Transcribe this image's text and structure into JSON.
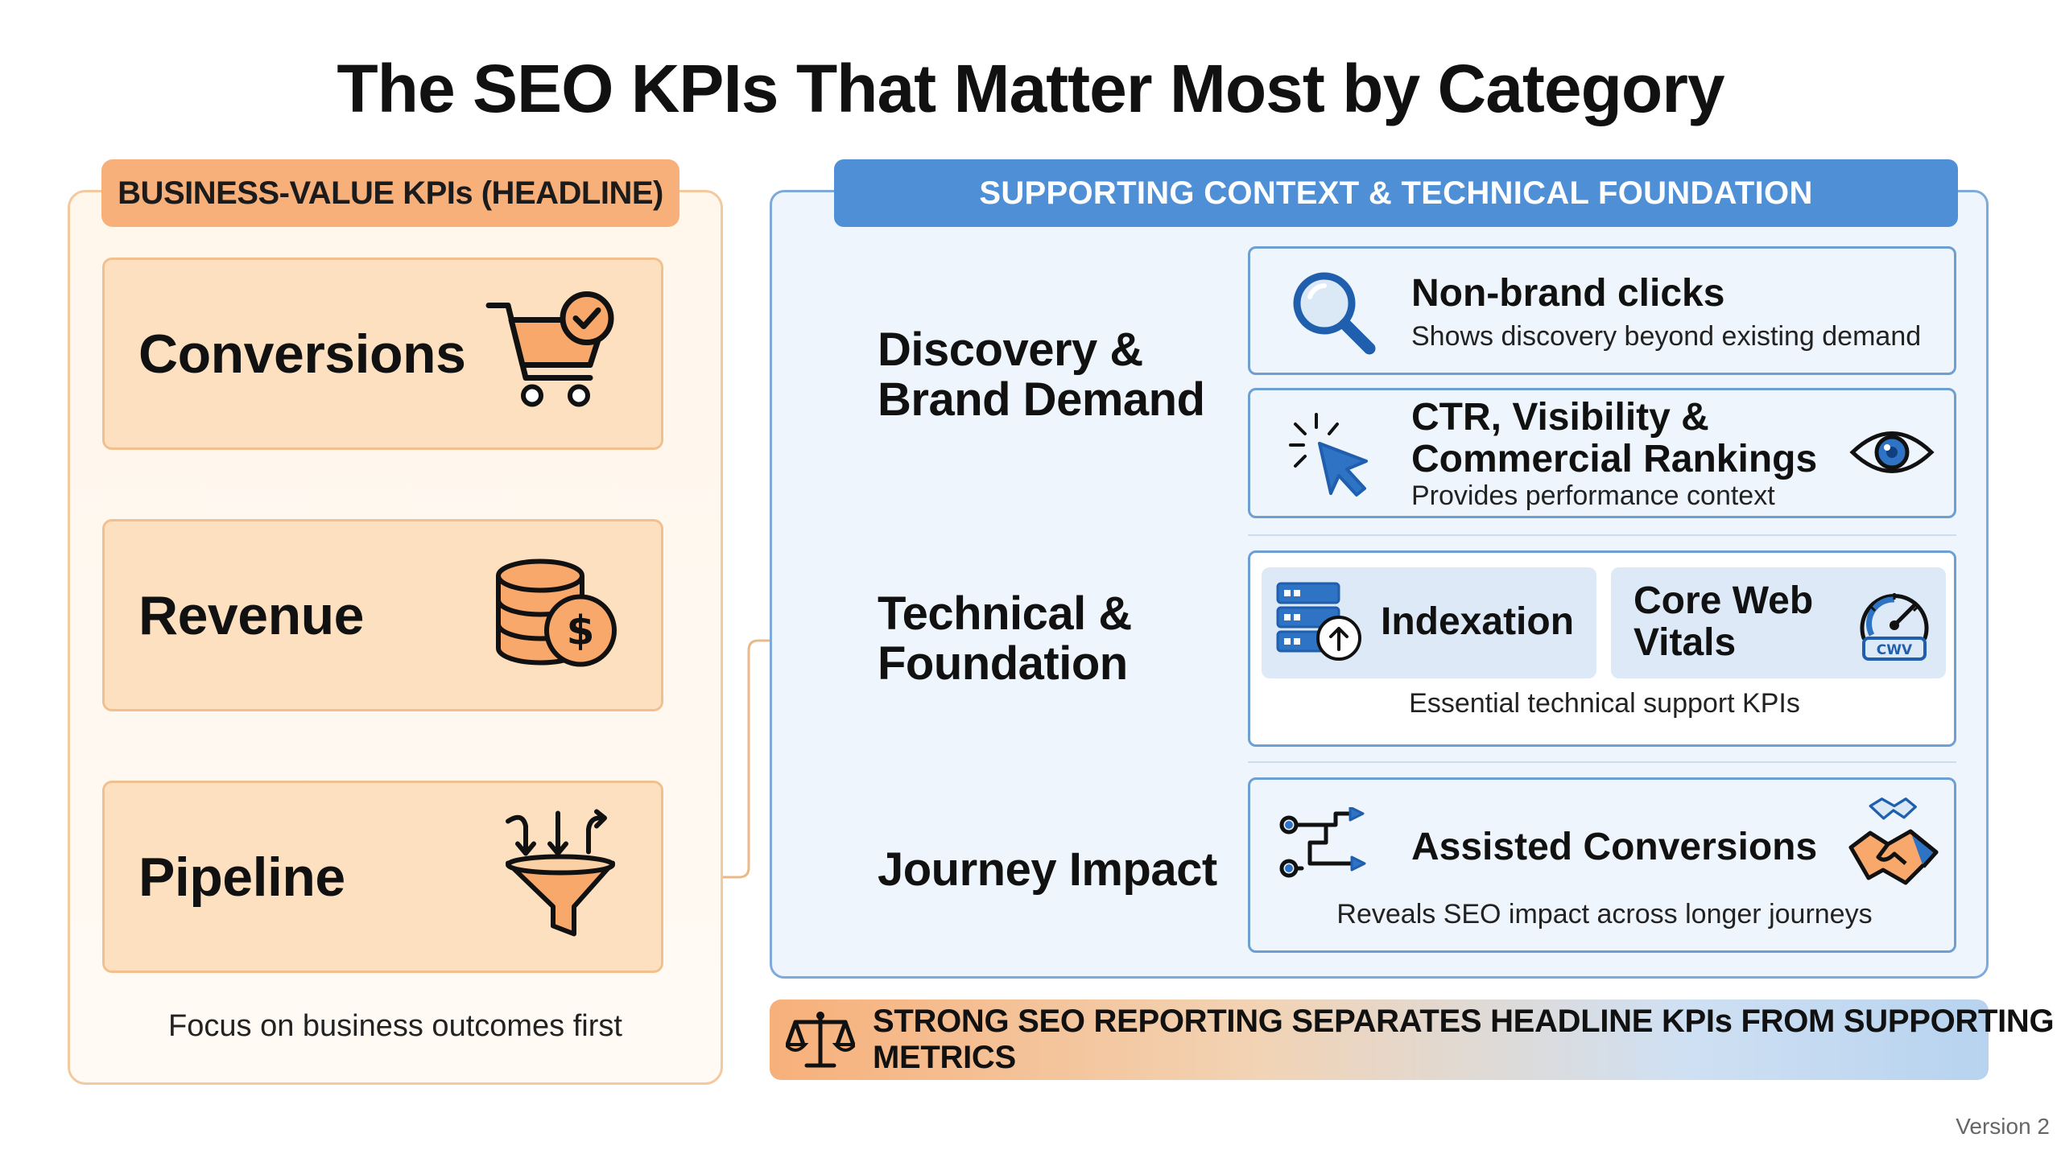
{
  "title": "The SEO KPIs That Matter Most by Category",
  "left": {
    "header": "BUSINESS-VALUE KPIs (HEADLINE)",
    "cards": [
      {
        "label": "Conversions",
        "icon": "shopping-cart-check-icon"
      },
      {
        "label": "Revenue",
        "icon": "coin-stack-dollar-icon"
      },
      {
        "label": "Pipeline",
        "icon": "funnel-icon"
      }
    ],
    "footnote": "Focus on business outcomes first"
  },
  "right": {
    "header": "SUPPORTING CONTEXT & TECHNICAL FOUNDATION",
    "groups": [
      {
        "label_line1": "Discovery &",
        "label_line2": "Brand Demand",
        "metrics": [
          {
            "title": "Non-brand clicks",
            "desc": "Shows discovery beyond existing demand",
            "icon": "magnifier-icon"
          },
          {
            "title_line1": "CTR, Visibility &",
            "title_line2": "Commercial Rankings",
            "desc": "Provides performance context",
            "icon": "cursor-click-icon",
            "icon2": "eye-icon"
          }
        ]
      },
      {
        "label_line1": "Technical &",
        "label_line2": "Foundation",
        "metrics": [
          {
            "title": "Indexation",
            "icon": "server-upload-icon"
          },
          {
            "title_line1": "Core Web",
            "title_line2": "Vitals",
            "icon": "speedometer-cwv-icon",
            "badge": "CWV"
          }
        ],
        "desc": "Essential technical support KPIs"
      },
      {
        "label": "Journey Impact",
        "metrics": [
          {
            "title": "Assisted Conversions",
            "desc": "Reveals SEO impact across longer journeys",
            "icon": "journey-path-icon",
            "icon2": "handshake-icon"
          }
        ]
      }
    ]
  },
  "banner": {
    "text": "STRONG SEO REPORTING SEPARATES HEADLINE KPIs FROM SUPPORTING METRICS",
    "icon": "balance-scale-icon"
  },
  "version": "Version 2",
  "colors": {
    "orange_accent": "#f7b07a",
    "orange_card": "#fde0c0",
    "blue_accent": "#4e8fd6",
    "blue_panel": "#eef5fc",
    "icon_blue": "#1f5fae"
  }
}
